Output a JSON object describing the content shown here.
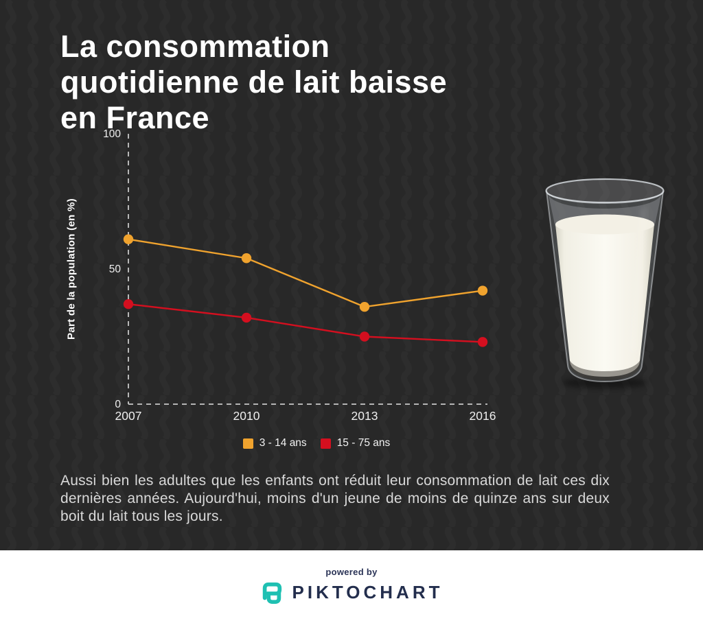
{
  "title": {
    "text": "La consommation quotidienne de lait baisse en France"
  },
  "chart_data": {
    "type": "line",
    "title": "",
    "xlabel": "",
    "ylabel": "Part de la population (en %)",
    "categories": [
      "2007",
      "2010",
      "2013",
      "2016"
    ],
    "series": [
      {
        "name": "3 - 14 ans",
        "color": "#f0a32e",
        "values": [
          61,
          54,
          36,
          42
        ]
      },
      {
        "name": "15 - 75 ans",
        "color": "#d40f1f",
        "values": [
          37,
          32,
          25,
          23
        ]
      }
    ],
    "ylim": [
      0,
      100
    ],
    "yticks": [
      0,
      50,
      100
    ],
    "grid": false,
    "axis_style": "dashed",
    "legend_position": "bottom"
  },
  "description": {
    "text": "Aussi bien les adultes que les enfants ont réduit leur consommation de lait ces dix dernières années. Aujourd'hui, moins d'un jeune de moins de quinze ans sur deux boit du lait tous les jours."
  },
  "footer": {
    "powered_by": "powered by",
    "brand": "PIKTOCHART"
  },
  "colors": {
    "background": "#282828",
    "title_text": "#ffffff",
    "body_text": "#d9d9d9",
    "axis": "#c9c9c9",
    "series_orange": "#f0a32e",
    "series_red": "#d40f1f",
    "footer_background": "#ffffff",
    "brand_navy": "#232e4d",
    "brand_teal": "#1fc0b2"
  }
}
